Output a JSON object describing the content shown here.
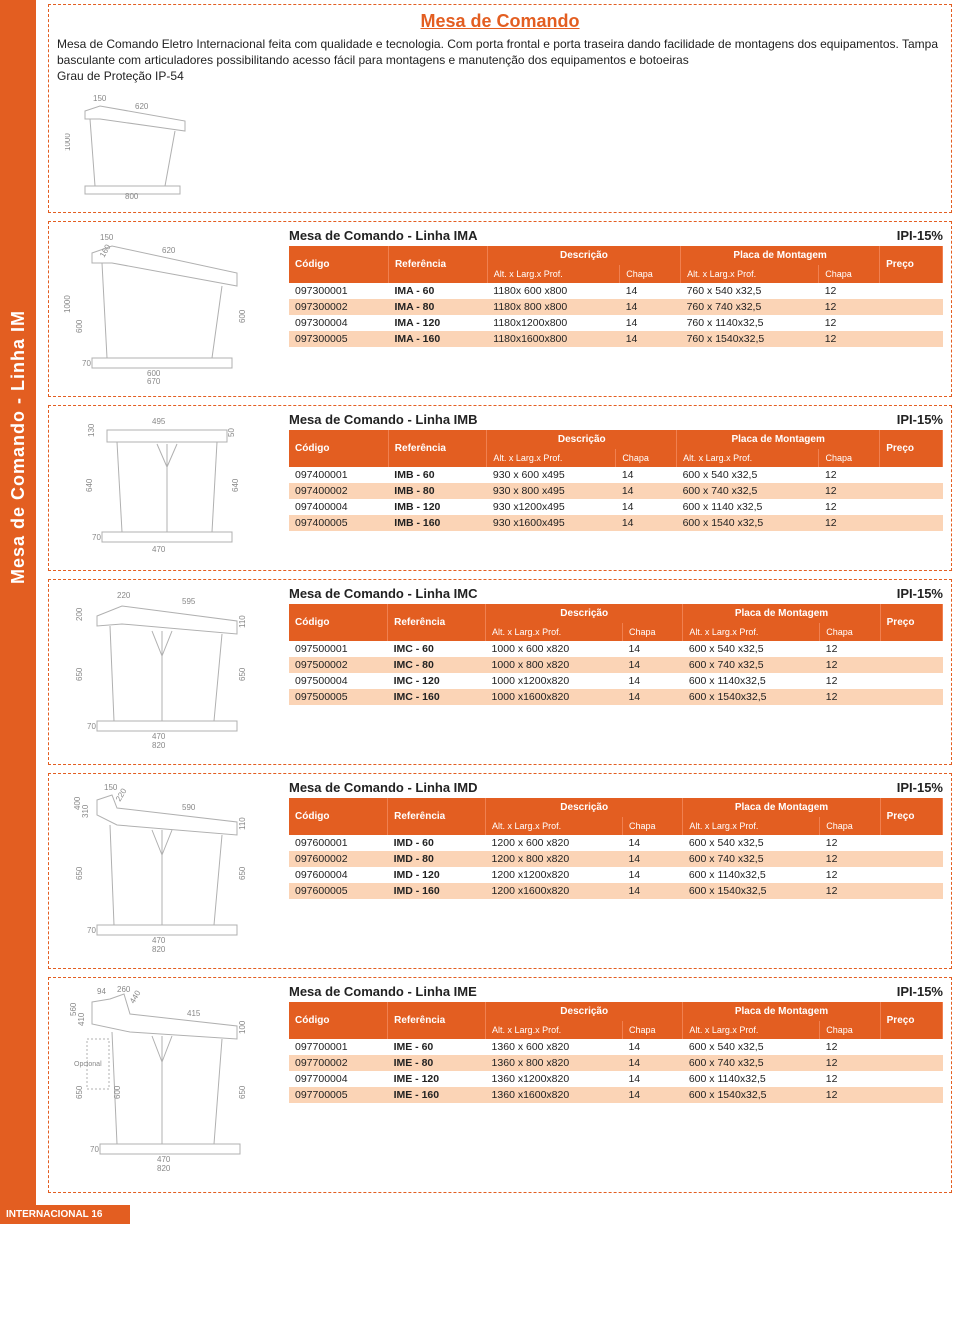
{
  "colors": {
    "accent": "#e35e21",
    "row_even_bg": "#fbd4b6",
    "diagram_stroke": "#b0b0b0",
    "text": "#222"
  },
  "side_tab": "Mesa de Comando - Linha IM",
  "footer": "INTERNACIONAL 16",
  "title": "Mesa de Comando",
  "intro": "Mesa de Comando Eletro Internacional feita com qualidade e tecnologia. Com porta frontal e porta traseira dando facilidade de montagens dos equipamentos. Tampa basculante com articuladores possibilitando acesso fácil para montagens e manutenção dos equipamentos e botoeiras\nGrau de Proteção IP-54",
  "header_labels": {
    "codigo": "Código",
    "ref": "Referência",
    "desc_group": "Descrição",
    "desc_sub": "Alt. x Larg.x Prof.",
    "chapa": "Chapa",
    "placa_group": "Placa de Montagem",
    "placa_sub": "Alt. x Larg.x Prof.",
    "chapa2": "Chapa",
    "preco": "Preço"
  },
  "ipi_label": "IPI-15%",
  "tables": [
    {
      "title": "Mesa de Comando - Linha IMA",
      "diagram_dims": [
        "150",
        "160",
        "620",
        "1000",
        "600",
        "600",
        "70",
        "600",
        "670",
        "800"
      ],
      "rows": [
        {
          "codigo": "097300001",
          "ref": "IMA - 60",
          "desc": "1180x 600 x800",
          "chapa": "14",
          "placa": "760 x  540 x32,5",
          "chapa2": "12"
        },
        {
          "codigo": "097300002",
          "ref": "IMA - 80",
          "desc": "1180x 800 x800",
          "chapa": "14",
          "placa": "760 x  740 x32,5",
          "chapa2": "12"
        },
        {
          "codigo": "097300004",
          "ref": "IMA - 120",
          "desc": "1180x1200x800",
          "chapa": "14",
          "placa": "760 x 1140x32,5",
          "chapa2": "12"
        },
        {
          "codigo": "097300005",
          "ref": "IMA - 160",
          "desc": "1180x1600x800",
          "chapa": "14",
          "placa": "760 x 1540x32,5",
          "chapa2": "12"
        }
      ]
    },
    {
      "title": "Mesa de Comando - Linha IMB",
      "diagram_dims": [
        "495",
        "130",
        "50",
        "640",
        "640",
        "70",
        "470"
      ],
      "rows": [
        {
          "codigo": "097400001",
          "ref": "IMB - 60",
          "desc": "930 x 600 x495",
          "chapa": "14",
          "placa": "600 x  540  x32,5",
          "chapa2": "12"
        },
        {
          "codigo": "097400002",
          "ref": "IMB - 80",
          "desc": "930 x 800 x495",
          "chapa": "14",
          "placa": "600 x  740  x32,5",
          "chapa2": "12"
        },
        {
          "codigo": "097400004",
          "ref": "IMB - 120",
          "desc": "930 x1200x495",
          "chapa": "14",
          "placa": "600 x 1140 x32,5",
          "chapa2": "12"
        },
        {
          "codigo": "097400005",
          "ref": "IMB - 160",
          "desc": "930 x1600x495",
          "chapa": "14",
          "placa": "600 x 1540 x32,5",
          "chapa2": "12"
        }
      ]
    },
    {
      "title": "Mesa de Comando - Linha IMC",
      "diagram_dims": [
        "220",
        "595",
        "200",
        "110",
        "650",
        "650",
        "70",
        "470",
        "820"
      ],
      "rows": [
        {
          "codigo": "097500001",
          "ref": "IMC - 60",
          "desc": "1000 x 600 x820",
          "chapa": "14",
          "placa": "600 x  540 x32,5",
          "chapa2": "12"
        },
        {
          "codigo": "097500002",
          "ref": "IMC - 80",
          "desc": "1000 x 800 x820",
          "chapa": "14",
          "placa": "600 x  740 x32,5",
          "chapa2": "12"
        },
        {
          "codigo": "097500004",
          "ref": "IMC - 120",
          "desc": "1000 x1200x820",
          "chapa": "14",
          "placa": "600 x 1140x32,5",
          "chapa2": "12"
        },
        {
          "codigo": "097500005",
          "ref": "IMC - 160",
          "desc": "1000 x1600x820",
          "chapa": "14",
          "placa": "600 x 1540x32,5",
          "chapa2": "12"
        }
      ]
    },
    {
      "title": "Mesa de Comando - Linha IMD",
      "diagram_dims": [
        "150",
        "220",
        "590",
        "400",
        "310",
        "110",
        "650",
        "650",
        "70",
        "470",
        "820"
      ],
      "rows": [
        {
          "codigo": "097600001",
          "ref": "IMD - 60",
          "desc": "1200 x 600 x820",
          "chapa": "14",
          "placa": "600 x  540 x32,5",
          "chapa2": "12"
        },
        {
          "codigo": "097600002",
          "ref": "IMD - 80",
          "desc": "1200 x 800 x820",
          "chapa": "14",
          "placa": "600 x  740 x32,5",
          "chapa2": "12"
        },
        {
          "codigo": "097600004",
          "ref": "IMD - 120",
          "desc": "1200 x1200x820",
          "chapa": "14",
          "placa": "600 x 1140x32,5",
          "chapa2": "12"
        },
        {
          "codigo": "097600005",
          "ref": "IMD - 160",
          "desc": "1200 x1600x820",
          "chapa": "14",
          "placa": "600 x 1540x32,5",
          "chapa2": "12"
        }
      ]
    },
    {
      "title": "Mesa de Comando - Linha IME",
      "diagram_dims": [
        "94",
        "260",
        "440",
        "415",
        "560",
        "410",
        "100",
        "650",
        "600",
        "650",
        "70",
        "470",
        "820",
        "Opcional"
      ],
      "rows": [
        {
          "codigo": "097700001",
          "ref": "IME - 60",
          "desc": "1360 x 600 x820",
          "chapa": "14",
          "placa": "600 x  540 x32,5",
          "chapa2": "12"
        },
        {
          "codigo": "097700002",
          "ref": "IME - 80",
          "desc": "1360 x 800 x820",
          "chapa": "14",
          "placa": "600 x  740 x32,5",
          "chapa2": "12"
        },
        {
          "codigo": "097700004",
          "ref": "IME - 120",
          "desc": "1360 x1200x820",
          "chapa": "14",
          "placa": "600 x 1140x32,5",
          "chapa2": "12"
        },
        {
          "codigo": "097700005",
          "ref": "IME - 160",
          "desc": "1360 x1600x820",
          "chapa": "14",
          "placa": "600 x 1540x32,5",
          "chapa2": "12"
        }
      ]
    }
  ]
}
